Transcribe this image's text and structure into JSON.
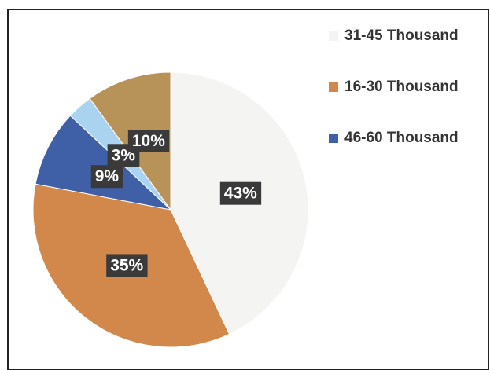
{
  "chart_data": {
    "type": "pie",
    "categories": [
      "31-45 Thousand",
      "16-30 Thousand",
      "46-60 Thousand",
      null,
      null
    ],
    "values": [
      43,
      35,
      9,
      3,
      10
    ],
    "value_labels": [
      "43%",
      "35%",
      "9%",
      "3%",
      "10%"
    ],
    "colors": [
      "#f4f4f2",
      "#d2884a",
      "#3f60a6",
      "#a9d3ee",
      "#b7935a"
    ],
    "legend": "right"
  }
}
